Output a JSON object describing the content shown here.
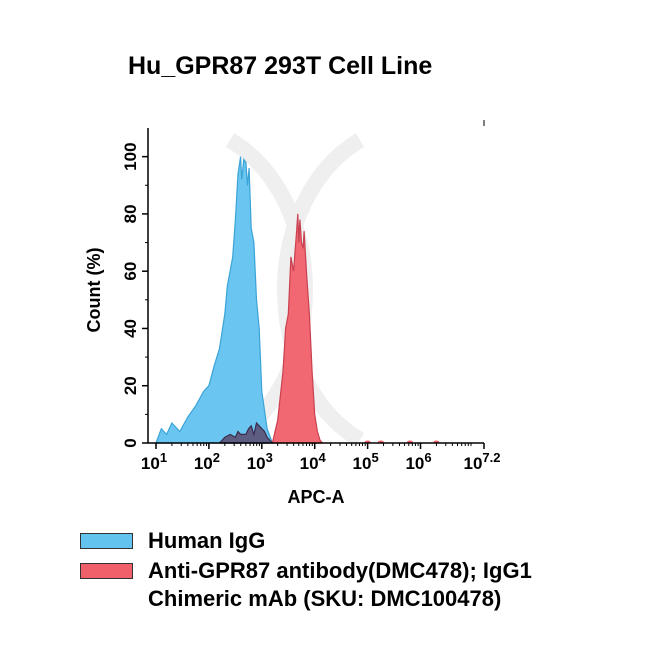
{
  "chart_data": {
    "type": "area",
    "title": "Hu_GPR87 293T Cell Line",
    "xlabel": "APC-A",
    "ylabel": "Count  (%)",
    "x_scale": "log10",
    "xlim": [
      1,
      7.2
    ],
    "ylim": [
      0,
      110
    ],
    "x_ticks": [
      {
        "exp": 1,
        "label": "10",
        "sup": "1"
      },
      {
        "exp": 2,
        "label": "10",
        "sup": "2"
      },
      {
        "exp": 3,
        "label": "10",
        "sup": "3"
      },
      {
        "exp": 4,
        "label": "10",
        "sup": "4"
      },
      {
        "exp": 5,
        "label": "10",
        "sup": "5"
      },
      {
        "exp": 6,
        "label": "10",
        "sup": "6"
      },
      {
        "exp": 7.2,
        "label": "10",
        "sup": "7.2"
      }
    ],
    "y_ticks": [
      0,
      20,
      40,
      60,
      80,
      100
    ],
    "grid": false,
    "legend_position": "bottom",
    "series": [
      {
        "name": "Human IgG",
        "color": "#62c3ef",
        "x_log10": [
          1.0,
          1.1,
          1.2,
          1.3,
          1.45,
          1.6,
          1.75,
          1.9,
          2.0,
          2.1,
          2.2,
          2.3,
          2.35,
          2.4,
          2.45,
          2.5,
          2.55,
          2.6,
          2.62,
          2.66,
          2.7,
          2.73,
          2.76,
          2.8,
          2.85,
          2.9,
          2.95,
          3.0,
          3.1,
          3.2
        ],
        "y": [
          0,
          5,
          3,
          7,
          4,
          9,
          13,
          18,
          20,
          27,
          33,
          45,
          55,
          60,
          65,
          78,
          94,
          100,
          92,
          99,
          98,
          90,
          96,
          75,
          70,
          50,
          40,
          18,
          5,
          0
        ]
      },
      {
        "name": "Anti-GPR87 antibody(DMC478); IgG1\nChimeric mAb (SKU: DMC100478)",
        "color": "#f0606a",
        "x_log10": [
          3.2,
          3.3,
          3.4,
          3.45,
          3.5,
          3.55,
          3.6,
          3.65,
          3.68,
          3.7,
          3.72,
          3.75,
          3.78,
          3.8,
          3.85,
          3.9,
          3.95,
          4.0,
          4.05,
          4.1,
          4.15
        ],
        "y": [
          0,
          8,
          25,
          40,
          45,
          65,
          60,
          72,
          80,
          70,
          78,
          70,
          68,
          74,
          58,
          45,
          25,
          10,
          4,
          1,
          0
        ]
      }
    ],
    "overlap": {
      "color": "#5a4a6e",
      "x_log10": [
        2.2,
        2.3,
        2.4,
        2.5,
        2.55,
        2.6,
        2.7,
        2.75,
        2.8,
        2.85,
        2.9,
        3.0,
        3.05,
        3.1,
        3.2
      ],
      "y": [
        0,
        2,
        3,
        2,
        4,
        3,
        3,
        5,
        6,
        3,
        7,
        5,
        4,
        2,
        0
      ]
    }
  }
}
